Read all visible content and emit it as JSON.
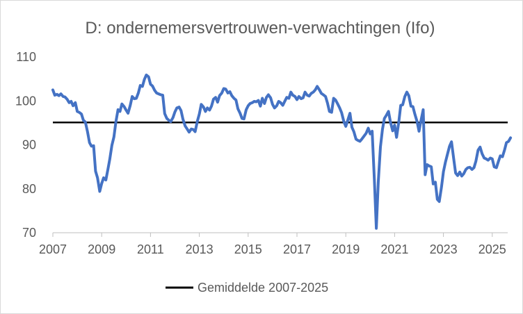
{
  "chart_data": {
    "type": "line",
    "title": "D: ondernemersvertrouwen-verwachtingen (Ifo)",
    "xlabel": "",
    "ylabel": "",
    "xlim": [
      2007,
      2025.8
    ],
    "ylim": [
      70,
      110
    ],
    "x_ticks": [
      "2007",
      "2009",
      "2011",
      "2013",
      "2015",
      "2017",
      "2019",
      "2021",
      "2023",
      "2025"
    ],
    "y_ticks": [
      "70",
      "80",
      "90",
      "100",
      "110"
    ],
    "grid": false,
    "legend": "bottom",
    "series": [
      {
        "name": "",
        "color": "#4472c4",
        "points": [
          [
            2007.0,
            102.5
          ],
          [
            2007.08,
            101.3
          ],
          [
            2007.17,
            101.5
          ],
          [
            2007.25,
            101.2
          ],
          [
            2007.33,
            101.6
          ],
          [
            2007.42,
            101.0
          ],
          [
            2007.5,
            100.9
          ],
          [
            2007.58,
            100.4
          ],
          [
            2007.67,
            99.6
          ],
          [
            2007.75,
            99.9
          ],
          [
            2007.83,
            98.9
          ],
          [
            2007.92,
            99.6
          ],
          [
            2008.0,
            97.6
          ],
          [
            2008.08,
            97.4
          ],
          [
            2008.17,
            97.0
          ],
          [
            2008.25,
            95.6
          ],
          [
            2008.33,
            95.2
          ],
          [
            2008.42,
            93.0
          ],
          [
            2008.5,
            90.5
          ],
          [
            2008.58,
            89.7
          ],
          [
            2008.67,
            89.8
          ],
          [
            2008.75,
            84.0
          ],
          [
            2008.83,
            82.5
          ],
          [
            2008.92,
            79.4
          ],
          [
            2009.0,
            81.2
          ],
          [
            2009.08,
            82.5
          ],
          [
            2009.17,
            82.0
          ],
          [
            2009.25,
            84.3
          ],
          [
            2009.33,
            86.7
          ],
          [
            2009.42,
            89.9
          ],
          [
            2009.5,
            91.8
          ],
          [
            2009.58,
            95.2
          ],
          [
            2009.67,
            98.0
          ],
          [
            2009.75,
            97.6
          ],
          [
            2009.83,
            99.3
          ],
          [
            2009.92,
            98.7
          ],
          [
            2010.0,
            97.9
          ],
          [
            2010.08,
            97.2
          ],
          [
            2010.17,
            99.0
          ],
          [
            2010.25,
            101.0
          ],
          [
            2010.33,
            100.5
          ],
          [
            2010.42,
            100.6
          ],
          [
            2010.5,
            101.8
          ],
          [
            2010.58,
            103.5
          ],
          [
            2010.67,
            103.3
          ],
          [
            2010.75,
            104.9
          ],
          [
            2010.83,
            105.9
          ],
          [
            2010.92,
            105.5
          ],
          [
            2011.0,
            103.8
          ],
          [
            2011.08,
            103.4
          ],
          [
            2011.17,
            102.4
          ],
          [
            2011.25,
            101.8
          ],
          [
            2011.33,
            101.6
          ],
          [
            2011.42,
            101.4
          ],
          [
            2011.5,
            101.3
          ],
          [
            2011.58,
            97.1
          ],
          [
            2011.67,
            96.0
          ],
          [
            2011.75,
            95.6
          ],
          [
            2011.83,
            95.3
          ],
          [
            2011.92,
            96.2
          ],
          [
            2012.0,
            97.5
          ],
          [
            2012.08,
            98.4
          ],
          [
            2012.17,
            98.6
          ],
          [
            2012.25,
            97.8
          ],
          [
            2012.33,
            95.8
          ],
          [
            2012.42,
            94.3
          ],
          [
            2012.5,
            93.6
          ],
          [
            2012.58,
            92.9
          ],
          [
            2012.67,
            93.6
          ],
          [
            2012.75,
            93.5
          ],
          [
            2012.83,
            93.0
          ],
          [
            2012.92,
            95.4
          ],
          [
            2013.0,
            97.0
          ],
          [
            2013.08,
            99.2
          ],
          [
            2013.17,
            98.6
          ],
          [
            2013.25,
            97.6
          ],
          [
            2013.33,
            98.4
          ],
          [
            2013.42,
            97.9
          ],
          [
            2013.5,
            98.8
          ],
          [
            2013.58,
            100.4
          ],
          [
            2013.67,
            100.8
          ],
          [
            2013.75,
            99.7
          ],
          [
            2013.83,
            101.2
          ],
          [
            2013.92,
            101.8
          ],
          [
            2014.0,
            102.8
          ],
          [
            2014.08,
            102.7
          ],
          [
            2014.17,
            101.8
          ],
          [
            2014.25,
            102.1
          ],
          [
            2014.33,
            101.2
          ],
          [
            2014.42,
            100.6
          ],
          [
            2014.5,
            100.2
          ],
          [
            2014.58,
            98.2
          ],
          [
            2014.67,
            97.2
          ],
          [
            2014.75,
            96.0
          ],
          [
            2014.83,
            95.9
          ],
          [
            2014.92,
            98.0
          ],
          [
            2015.0,
            98.9
          ],
          [
            2015.08,
            99.4
          ],
          [
            2015.17,
            99.6
          ],
          [
            2015.25,
            99.9
          ],
          [
            2015.33,
            99.8
          ],
          [
            2015.42,
            100.1
          ],
          [
            2015.5,
            98.8
          ],
          [
            2015.58,
            100.6
          ],
          [
            2015.67,
            99.4
          ],
          [
            2015.75,
            100.8
          ],
          [
            2015.83,
            101.4
          ],
          [
            2015.92,
            100.7
          ],
          [
            2016.0,
            99.2
          ],
          [
            2016.08,
            98.4
          ],
          [
            2016.17,
            98.9
          ],
          [
            2016.25,
            99.9
          ],
          [
            2016.33,
            99.6
          ],
          [
            2016.42,
            99.0
          ],
          [
            2016.5,
            99.9
          ],
          [
            2016.58,
            100.8
          ],
          [
            2016.67,
            100.6
          ],
          [
            2016.75,
            102.0
          ],
          [
            2016.83,
            101.3
          ],
          [
            2016.92,
            101.0
          ],
          [
            2017.0,
            100.3
          ],
          [
            2017.08,
            101.0
          ],
          [
            2017.17,
            100.5
          ],
          [
            2017.25,
            100.7
          ],
          [
            2017.33,
            102.0
          ],
          [
            2017.42,
            101.3
          ],
          [
            2017.5,
            101.1
          ],
          [
            2017.58,
            101.7
          ],
          [
            2017.67,
            102.0
          ],
          [
            2017.75,
            102.5
          ],
          [
            2017.83,
            103.3
          ],
          [
            2017.92,
            102.5
          ],
          [
            2018.0,
            101.7
          ],
          [
            2018.08,
            101.4
          ],
          [
            2018.17,
            101.0
          ],
          [
            2018.25,
            99.5
          ],
          [
            2018.33,
            97.6
          ],
          [
            2018.42,
            97.4
          ],
          [
            2018.5,
            100.6
          ],
          [
            2018.58,
            100.2
          ],
          [
            2018.67,
            99.3
          ],
          [
            2018.75,
            98.4
          ],
          [
            2018.83,
            97.3
          ],
          [
            2018.92,
            95.3
          ],
          [
            2019.0,
            94.2
          ],
          [
            2019.08,
            95.6
          ],
          [
            2019.17,
            97.2
          ],
          [
            2019.25,
            94.0
          ],
          [
            2019.33,
            93.0
          ],
          [
            2019.42,
            91.3
          ],
          [
            2019.5,
            91.0
          ],
          [
            2019.58,
            90.8
          ],
          [
            2019.67,
            91.4
          ],
          [
            2019.75,
            92.0
          ],
          [
            2019.83,
            92.6
          ],
          [
            2019.92,
            93.8
          ],
          [
            2020.0,
            92.5
          ],
          [
            2020.08,
            93.1
          ],
          [
            2020.17,
            82.0
          ],
          [
            2020.25,
            71.0
          ],
          [
            2020.33,
            81.5
          ],
          [
            2020.42,
            89.5
          ],
          [
            2020.5,
            93.5
          ],
          [
            2020.58,
            96.0
          ],
          [
            2020.67,
            96.8
          ],
          [
            2020.75,
            97.6
          ],
          [
            2020.83,
            95.2
          ],
          [
            2020.92,
            93.2
          ],
          [
            2021.0,
            94.5
          ],
          [
            2021.08,
            91.7
          ],
          [
            2021.17,
            95.2
          ],
          [
            2021.25,
            99.0
          ],
          [
            2021.33,
            99.1
          ],
          [
            2021.42,
            101.0
          ],
          [
            2021.5,
            102.0
          ],
          [
            2021.58,
            101.2
          ],
          [
            2021.67,
            98.8
          ],
          [
            2021.75,
            98.7
          ],
          [
            2021.83,
            97.0
          ],
          [
            2021.92,
            95.3
          ],
          [
            2022.0,
            93.1
          ],
          [
            2022.08,
            95.5
          ],
          [
            2022.17,
            98.0
          ],
          [
            2022.25,
            83.2
          ],
          [
            2022.33,
            85.5
          ],
          [
            2022.42,
            85.2
          ],
          [
            2022.5,
            85.0
          ],
          [
            2022.58,
            81.1
          ],
          [
            2022.67,
            81.5
          ],
          [
            2022.75,
            77.6
          ],
          [
            2022.83,
            77.1
          ],
          [
            2022.92,
            80.4
          ],
          [
            2023.0,
            83.9
          ],
          [
            2023.08,
            86.0
          ],
          [
            2023.17,
            88.0
          ],
          [
            2023.25,
            89.7
          ],
          [
            2023.33,
            90.7
          ],
          [
            2023.42,
            86.9
          ],
          [
            2023.5,
            83.6
          ],
          [
            2023.58,
            83.0
          ],
          [
            2023.67,
            83.8
          ],
          [
            2023.75,
            82.9
          ],
          [
            2023.83,
            83.4
          ],
          [
            2023.92,
            84.4
          ],
          [
            2024.0,
            84.8
          ],
          [
            2024.08,
            84.9
          ],
          [
            2024.17,
            84.4
          ],
          [
            2024.25,
            84.8
          ],
          [
            2024.33,
            86.3
          ],
          [
            2024.42,
            88.8
          ],
          [
            2024.5,
            89.5
          ],
          [
            2024.58,
            88.0
          ],
          [
            2024.67,
            87.0
          ],
          [
            2024.75,
            86.8
          ],
          [
            2024.83,
            86.5
          ],
          [
            2024.92,
            87.0
          ],
          [
            2025.0,
            86.8
          ],
          [
            2025.08,
            85.0
          ],
          [
            2025.17,
            84.8
          ],
          [
            2025.25,
            86.2
          ],
          [
            2025.33,
            87.5
          ],
          [
            2025.42,
            87.3
          ],
          [
            2025.5,
            88.8
          ],
          [
            2025.58,
            90.5
          ],
          [
            2025.67,
            90.8
          ],
          [
            2025.75,
            91.6
          ]
        ]
      },
      {
        "name": "Gemiddelde 2007-2025",
        "color": "#000000",
        "points": [
          [
            2007.0,
            95.1
          ],
          [
            2025.8,
            95.1
          ]
        ]
      }
    ]
  }
}
